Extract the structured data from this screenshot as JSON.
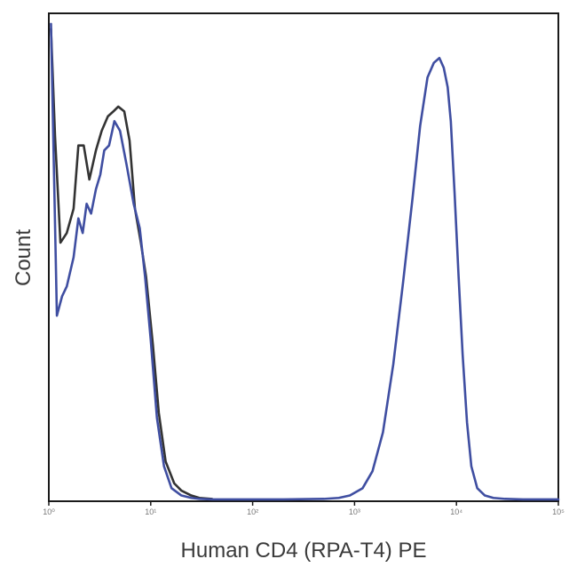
{
  "chart_data": {
    "type": "line",
    "xlabel": "Human CD4 (RPA-T4) PE",
    "ylabel": "Count",
    "x_scale": "log",
    "xlim": [
      1,
      100000
    ],
    "ylim": [
      0,
      100
    ],
    "grid": false,
    "legend": "none",
    "x_ticks": [
      {
        "value": 1,
        "label": "10⁰"
      },
      {
        "value": 10,
        "label": "10¹"
      },
      {
        "value": 100,
        "label": "10²"
      },
      {
        "value": 1000,
        "label": "10³"
      },
      {
        "value": 10000,
        "label": "10⁴"
      },
      {
        "value": 100000,
        "label": "10⁵"
      }
    ],
    "series": [
      {
        "color": "#333333",
        "x": [
          1.05,
          1.15,
          1.3,
          1.5,
          1.75,
          1.95,
          2.2,
          2.5,
          2.9,
          3.3,
          3.8,
          4.3,
          4.8,
          5.5,
          6.2,
          7.0,
          8.0,
          9.0,
          10.5,
          12,
          14,
          17,
          20,
          25,
          30,
          40
        ],
        "y": [
          97,
          75,
          53,
          55,
          60,
          73,
          73,
          66,
          72,
          76,
          79,
          80,
          81,
          80,
          74,
          60,
          53,
          46,
          32,
          18,
          8,
          3.5,
          2,
          1,
          0.5,
          0.3
        ]
      },
      {
        "color": "#3f4ea1",
        "x": [
          1.05,
          1.2,
          1.35,
          1.5,
          1.75,
          1.95,
          2.15,
          2.35,
          2.6,
          2.9,
          3.2,
          3.5,
          3.9,
          4.4,
          5.0,
          5.8,
          6.8,
          7.8,
          8.8,
          10,
          11.5,
          13.5,
          16,
          20,
          25,
          30,
          40,
          60,
          100,
          200,
          500,
          700,
          900,
          1200,
          1500,
          1900,
          2400,
          3000,
          3700,
          4400,
          5200,
          6000,
          6800,
          7500,
          8200,
          8800,
          9600,
          10500,
          11500,
          12700,
          14000,
          16000,
          19000,
          23000,
          30000,
          45000,
          100000
        ],
        "y": [
          98,
          38,
          42,
          44,
          50,
          58,
          55,
          61,
          59,
          64,
          67,
          72,
          73,
          78,
          76,
          69,
          61,
          56,
          46,
          33,
          17,
          7,
          2.5,
          1,
          0.5,
          0.3,
          0.2,
          0.2,
          0.2,
          0.2,
          0.3,
          0.5,
          1,
          2.5,
          6,
          14,
          28,
          45,
          62,
          77,
          87,
          90,
          91,
          89,
          85,
          78,
          63,
          46,
          30,
          16,
          7,
          2.5,
          1,
          0.5,
          0.3,
          0.2,
          0.2
        ]
      }
    ]
  }
}
